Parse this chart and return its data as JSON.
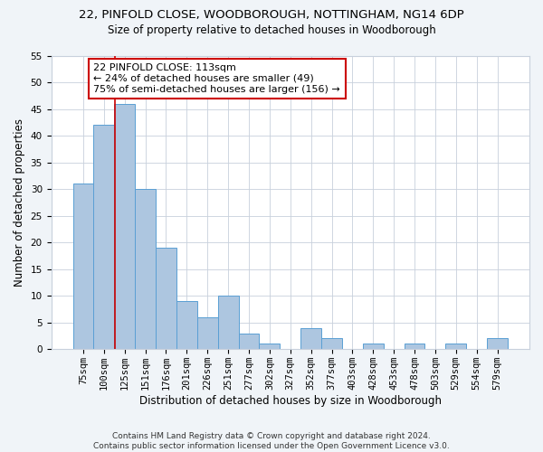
{
  "title1": "22, PINFOLD CLOSE, WOODBOROUGH, NOTTINGHAM, NG14 6DP",
  "title2": "Size of property relative to detached houses in Woodborough",
  "xlabel": "Distribution of detached houses by size in Woodborough",
  "ylabel": "Number of detached properties",
  "categories": [
    "75sqm",
    "100sqm",
    "125sqm",
    "151sqm",
    "176sqm",
    "201sqm",
    "226sqm",
    "251sqm",
    "277sqm",
    "302sqm",
    "327sqm",
    "352sqm",
    "377sqm",
    "403sqm",
    "428sqm",
    "453sqm",
    "478sqm",
    "503sqm",
    "529sqm",
    "554sqm",
    "579sqm"
  ],
  "values": [
    31,
    42,
    46,
    30,
    19,
    9,
    6,
    10,
    3,
    1,
    0,
    4,
    2,
    0,
    1,
    0,
    1,
    0,
    1,
    0,
    2
  ],
  "bar_color": "#adc6e0",
  "bar_edge_color": "#5a9fd4",
  "vline_x": 1.52,
  "vline_color": "#cc0000",
  "annotation_text": "22 PINFOLD CLOSE: 113sqm\n← 24% of detached houses are smaller (49)\n75% of semi-detached houses are larger (156) →",
  "annotation_box_color": "#ffffff",
  "annotation_box_edgecolor": "#cc0000",
  "ylim": [
    0,
    55
  ],
  "yticks": [
    0,
    5,
    10,
    15,
    20,
    25,
    30,
    35,
    40,
    45,
    50,
    55
  ],
  "footer": "Contains HM Land Registry data © Crown copyright and database right 2024.\nContains public sector information licensed under the Open Government Licence v3.0.",
  "bg_color": "#f0f4f8",
  "plot_bg_color": "#ffffff",
  "grid_color": "#c8d0dc",
  "title1_fontsize": 9.5,
  "title2_fontsize": 8.5,
  "xlabel_fontsize": 8.5,
  "ylabel_fontsize": 8.5,
  "tick_fontsize": 7.5,
  "footer_fontsize": 6.5,
  "annotation_fontsize": 8
}
